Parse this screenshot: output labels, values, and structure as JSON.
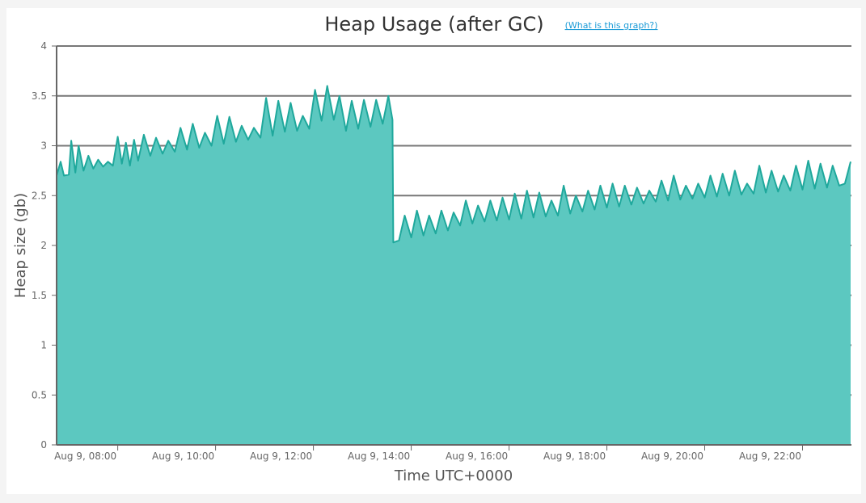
{
  "chart_data": {
    "type": "area",
    "title": "Heap Usage (after GC)",
    "help_link": "(What is this graph?)",
    "xlabel": "Time UTC+0000",
    "ylabel": "Heap size (gb)",
    "ylim": [
      0,
      4
    ],
    "y_ticks": [
      0,
      0.5,
      1,
      1.5,
      2,
      2.5,
      3,
      3.5,
      4
    ],
    "xlim": [
      "Aug 9, 06:45",
      "Aug 9, 23:00"
    ],
    "x_ticks": [
      {
        "time": "08:00",
        "label": "Aug 9, 08:00"
      },
      {
        "time": "10:00",
        "label": "Aug 9, 10:00"
      },
      {
        "time": "12:00",
        "label": "Aug 9, 12:00"
      },
      {
        "time": "14:00",
        "label": "Aug 9, 14:00"
      },
      {
        "time": "16:00",
        "label": "Aug 9, 16:00"
      },
      {
        "time": "18:00",
        "label": "Aug 9, 18:00"
      },
      {
        "time": "20:00",
        "label": "Aug 9, 20:00"
      },
      {
        "time": "22:00",
        "label": "Aug 9, 22:00"
      }
    ],
    "grid": true,
    "colors": {
      "fill": "#5cc8c0",
      "line": "#1fa89c",
      "grid": "#777777",
      "axis": "#666666"
    },
    "series": [
      {
        "points": [
          [
            "06:45",
            2.7
          ],
          [
            "06:50",
            2.84
          ],
          [
            "06:54",
            2.7
          ],
          [
            "07:00",
            2.71
          ],
          [
            "07:03",
            3.05
          ],
          [
            "07:08",
            2.73
          ],
          [
            "07:12",
            3.0
          ],
          [
            "07:18",
            2.75
          ],
          [
            "07:24",
            2.9
          ],
          [
            "07:30",
            2.77
          ],
          [
            "07:36",
            2.86
          ],
          [
            "07:42",
            2.79
          ],
          [
            "07:48",
            2.84
          ],
          [
            "07:54",
            2.8
          ],
          [
            "08:00",
            3.09
          ],
          [
            "08:05",
            2.82
          ],
          [
            "08:10",
            3.03
          ],
          [
            "08:15",
            2.8
          ],
          [
            "08:20",
            3.06
          ],
          [
            "08:25",
            2.85
          ],
          [
            "08:32",
            3.11
          ],
          [
            "08:40",
            2.9
          ],
          [
            "08:47",
            3.08
          ],
          [
            "08:55",
            2.92
          ],
          [
            "09:02",
            3.05
          ],
          [
            "09:10",
            2.94
          ],
          [
            "09:17",
            3.18
          ],
          [
            "09:25",
            2.96
          ],
          [
            "09:32",
            3.22
          ],
          [
            "09:40",
            2.98
          ],
          [
            "09:47",
            3.13
          ],
          [
            "09:55",
            3.0
          ],
          [
            "10:02",
            3.3
          ],
          [
            "10:10",
            3.02
          ],
          [
            "10:17",
            3.29
          ],
          [
            "10:25",
            3.04
          ],
          [
            "10:32",
            3.2
          ],
          [
            "10:40",
            3.06
          ],
          [
            "10:47",
            3.18
          ],
          [
            "10:55",
            3.08
          ],
          [
            "11:02",
            3.48
          ],
          [
            "11:10",
            3.1
          ],
          [
            "11:17",
            3.45
          ],
          [
            "11:25",
            3.14
          ],
          [
            "11:32",
            3.43
          ],
          [
            "11:40",
            3.15
          ],
          [
            "11:47",
            3.3
          ],
          [
            "11:55",
            3.17
          ],
          [
            "12:02",
            3.56
          ],
          [
            "12:10",
            3.25
          ],
          [
            "12:17",
            3.6
          ],
          [
            "12:25",
            3.26
          ],
          [
            "12:32",
            3.5
          ],
          [
            "12:40",
            3.15
          ],
          [
            "12:47",
            3.45
          ],
          [
            "12:55",
            3.17
          ],
          [
            "13:02",
            3.46
          ],
          [
            "13:10",
            3.19
          ],
          [
            "13:17",
            3.46
          ],
          [
            "13:25",
            3.22
          ],
          [
            "13:32",
            3.5
          ],
          [
            "13:37",
            3.26
          ],
          [
            "13:38",
            2.03
          ],
          [
            "13:45",
            2.05
          ],
          [
            "13:52",
            2.3
          ],
          [
            "14:00",
            2.08
          ],
          [
            "14:07",
            2.35
          ],
          [
            "14:15",
            2.1
          ],
          [
            "14:22",
            2.3
          ],
          [
            "14:30",
            2.12
          ],
          [
            "14:37",
            2.35
          ],
          [
            "14:45",
            2.15
          ],
          [
            "14:52",
            2.33
          ],
          [
            "15:00",
            2.2
          ],
          [
            "15:07",
            2.45
          ],
          [
            "15:15",
            2.22
          ],
          [
            "15:22",
            2.4
          ],
          [
            "15:30",
            2.24
          ],
          [
            "15:37",
            2.45
          ],
          [
            "15:45",
            2.25
          ],
          [
            "15:52",
            2.48
          ],
          [
            "16:00",
            2.26
          ],
          [
            "16:07",
            2.52
          ],
          [
            "16:15",
            2.27
          ],
          [
            "16:22",
            2.55
          ],
          [
            "16:30",
            2.28
          ],
          [
            "16:37",
            2.53
          ],
          [
            "16:45",
            2.29
          ],
          [
            "16:52",
            2.45
          ],
          [
            "17:00",
            2.3
          ],
          [
            "17:07",
            2.6
          ],
          [
            "17:15",
            2.32
          ],
          [
            "17:22",
            2.5
          ],
          [
            "17:30",
            2.34
          ],
          [
            "17:37",
            2.55
          ],
          [
            "17:45",
            2.36
          ],
          [
            "17:52",
            2.6
          ],
          [
            "18:00",
            2.38
          ],
          [
            "18:07",
            2.62
          ],
          [
            "18:15",
            2.39
          ],
          [
            "18:22",
            2.6
          ],
          [
            "18:30",
            2.41
          ],
          [
            "18:37",
            2.58
          ],
          [
            "18:45",
            2.42
          ],
          [
            "18:52",
            2.55
          ],
          [
            "19:00",
            2.44
          ],
          [
            "19:07",
            2.65
          ],
          [
            "19:15",
            2.45
          ],
          [
            "19:22",
            2.7
          ],
          [
            "19:30",
            2.46
          ],
          [
            "19:37",
            2.6
          ],
          [
            "19:45",
            2.47
          ],
          [
            "19:52",
            2.62
          ],
          [
            "20:00",
            2.48
          ],
          [
            "20:07",
            2.7
          ],
          [
            "20:15",
            2.49
          ],
          [
            "20:22",
            2.72
          ],
          [
            "20:30",
            2.5
          ],
          [
            "20:37",
            2.75
          ],
          [
            "20:45",
            2.51
          ],
          [
            "20:52",
            2.62
          ],
          [
            "21:00",
            2.52
          ],
          [
            "21:07",
            2.8
          ],
          [
            "21:15",
            2.53
          ],
          [
            "21:22",
            2.75
          ],
          [
            "21:30",
            2.54
          ],
          [
            "21:37",
            2.7
          ],
          [
            "21:45",
            2.55
          ],
          [
            "21:52",
            2.8
          ],
          [
            "22:00",
            2.56
          ],
          [
            "22:07",
            2.85
          ],
          [
            "22:15",
            2.57
          ],
          [
            "22:22",
            2.82
          ],
          [
            "22:30",
            2.58
          ],
          [
            "22:37",
            2.8
          ],
          [
            "22:45",
            2.6
          ],
          [
            "22:52",
            2.62
          ],
          [
            "22:59",
            2.84
          ]
        ]
      }
    ]
  }
}
